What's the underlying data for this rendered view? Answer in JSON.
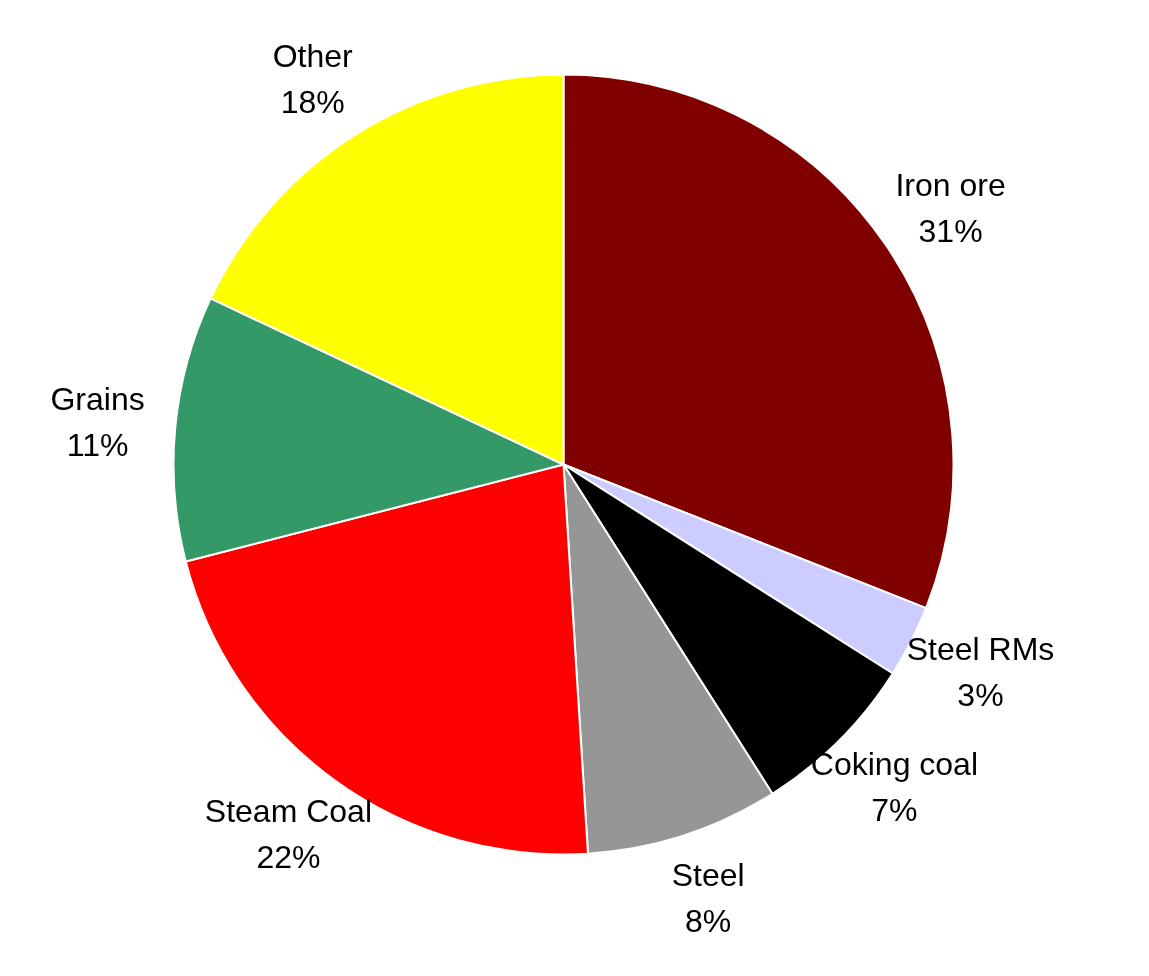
{
  "chart_data": {
    "type": "pie",
    "categories": [
      "Iron ore",
      "Steel RMs",
      "Coking coal",
      "Steel",
      "Steam Coal",
      "Grains",
      "Other"
    ],
    "values": [
      31,
      3,
      7,
      8,
      22,
      11,
      18
    ],
    "colors": [
      "#800000",
      "#ccccff",
      "#000000",
      "#969696",
      "#ff0000",
      "#339966",
      "#ffff00"
    ],
    "value_labels": [
      "31%",
      "3%",
      "7%",
      "8%",
      "22%",
      "11%",
      "18%"
    ],
    "legend": false
  }
}
